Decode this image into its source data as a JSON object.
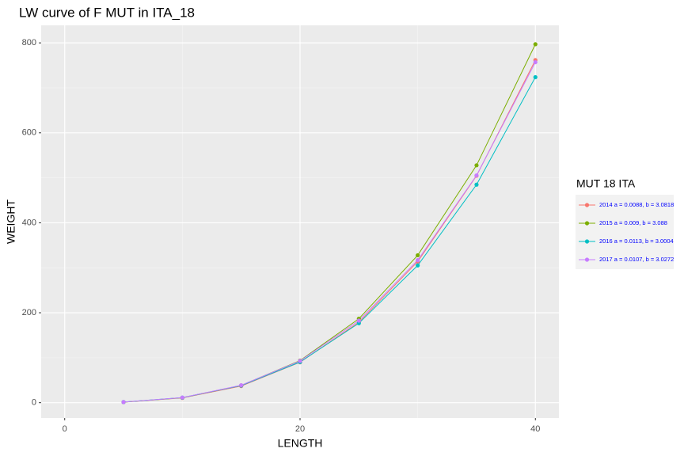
{
  "chart_data": {
    "type": "line",
    "title": "LW curve of F MUT in ITA_18",
    "x_label": "LENGTH",
    "y_label": "WEIGHT",
    "legend_title": "MUT 18 ITA",
    "legend_position": "right",
    "x": [
      5,
      10,
      15,
      20,
      25,
      30,
      35,
      40
    ],
    "series": [
      {
        "name": "2014 a = 0.0088, b = 3.0818",
        "color": "#F8766D",
        "values": [
          1.25,
          10.6,
          37.1,
          89.9,
          178.9,
          313.7,
          504.6,
          761.8
        ]
      },
      {
        "name": "2015 a = 0.009, b = 3.088",
        "color": "#7CAE00",
        "values": [
          1.3,
          11.0,
          38.5,
          93.7,
          186.7,
          327.8,
          527.8,
          797.0
        ]
      },
      {
        "name": "2016 a = 0.0113, b = 3.0004",
        "color": "#00BFC4",
        "values": [
          1.41,
          11.3,
          38.2,
          90.5,
          176.7,
          305.2,
          484.8,
          723.7
        ]
      },
      {
        "name": "2017 a = 0.0107, b = 3.0272",
        "color": "#C77CFF",
        "values": [
          1.4,
          11.4,
          38.9,
          92.9,
          182.5,
          316.9,
          505.3,
          757.0
        ]
      }
    ],
    "xlim": [
      -2,
      42
    ],
    "xticks": [
      0,
      20,
      40
    ],
    "ylim": [
      -34,
      839
    ],
    "yticks": [
      0,
      200,
      400,
      600,
      800
    ],
    "grid": true
  }
}
